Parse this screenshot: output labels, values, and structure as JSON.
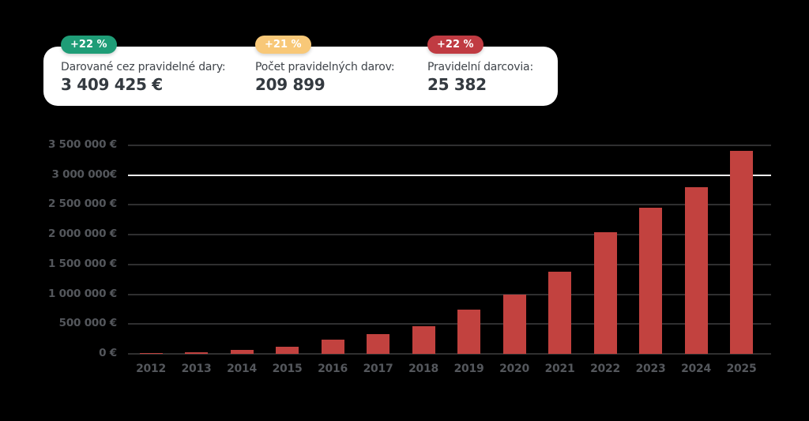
{
  "page": {
    "background_color": "#000000"
  },
  "summary_card": {
    "stats": [
      {
        "badge": "+22 %",
        "badge_color": "#1f9d77",
        "label": "Darované cez pravidelné dary:",
        "value": "3 409 425 €"
      },
      {
        "badge": "+21 %",
        "badge_color": "#f8c878",
        "label": "Počet pravidelných darov:",
        "value": "209 899"
      },
      {
        "badge": "+22 %",
        "badge_color": "#c03b42",
        "label": "Pravidelní darcovia:",
        "value": "25 382"
      }
    ]
  },
  "chart_data": {
    "type": "bar",
    "title": "",
    "xlabel": "",
    "ylabel": "",
    "categories": [
      "2012",
      "2013",
      "2014",
      "2015",
      "2016",
      "2017",
      "2018",
      "2019",
      "2020",
      "2021",
      "2022",
      "2023",
      "2024",
      "2025"
    ],
    "values": [
      17000,
      28000,
      66000,
      125000,
      245000,
      330000,
      470000,
      740000,
      990000,
      1385000,
      2040000,
      2450000,
      2800000,
      3409425
    ],
    "bar_color": "#c2423f",
    "ylim": [
      0,
      3500000
    ],
    "grid": true,
    "grid_color": "#2f2f30",
    "highlight_grid_color": "#f2f2f2",
    "axis_label_color": "#54575c",
    "legend": "none",
    "yticks": [
      {
        "value": 0,
        "label": "0 €"
      },
      {
        "value": 500000,
        "label": "500 000 €"
      },
      {
        "value": 1000000,
        "label": "1 000 000 €"
      },
      {
        "value": 1500000,
        "label": "1 500 000 €"
      },
      {
        "value": 2000000,
        "label": "2 000 000 €"
      },
      {
        "value": 2500000,
        "label": "2 500 000 €"
      },
      {
        "value": 3000000,
        "label": "3 000 000€",
        "highlight": true
      },
      {
        "value": 3500000,
        "label": "3 500 000 €"
      }
    ]
  }
}
